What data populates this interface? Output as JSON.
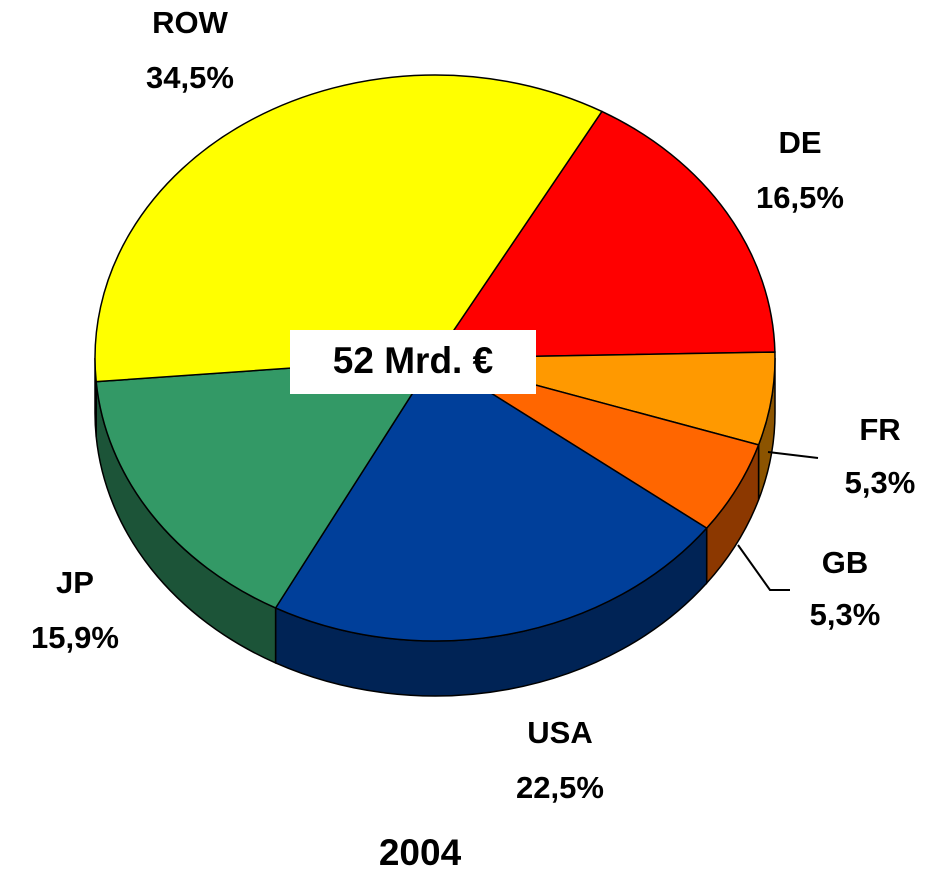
{
  "chart_data": {
    "type": "pie3d",
    "title": "2004",
    "center_label": "52 Mrd. €",
    "categories": [
      "DE",
      "FR",
      "GB",
      "USA",
      "JP",
      "ROW"
    ],
    "values": [
      16.5,
      5.3,
      5.3,
      22.5,
      15.9,
      34.5
    ],
    "value_labels": [
      "16,5%",
      "5,3%",
      "5,3%",
      "22,5%",
      "15,9%",
      "34,5%"
    ],
    "colors": [
      "#ff0000",
      "#ff9900",
      "#ff6600",
      "#003f9a",
      "#339966",
      "#ffff00"
    ]
  }
}
